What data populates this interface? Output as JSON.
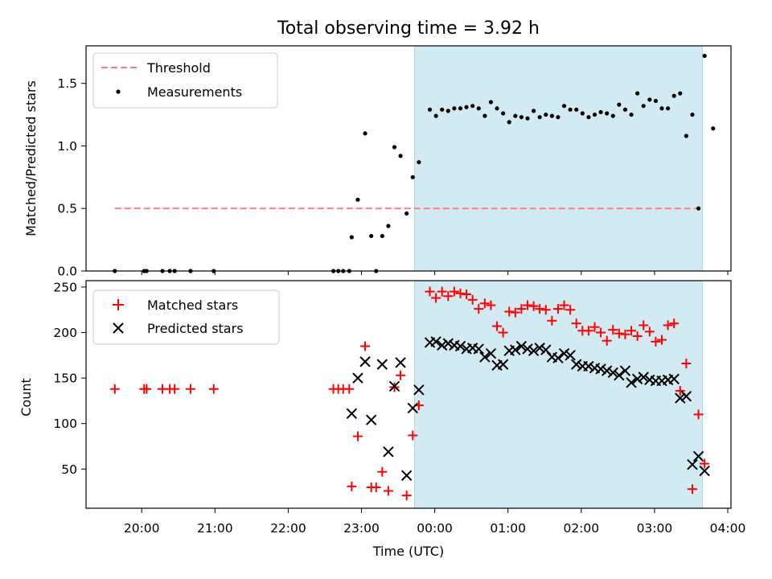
{
  "chart_data": {
    "type": "scatter",
    "title": "Total observing time = 3.92 h",
    "xlabel": "Time (UTC)",
    "x_ticks": [
      "20:00",
      "21:00",
      "22:00",
      "23:00",
      "00:00",
      "01:00",
      "02:00",
      "03:00",
      "04:00"
    ],
    "colors": {
      "threshold": "#ff7f7f",
      "measurements": "#000000",
      "matched": "#ff0000",
      "predicted": "#000000",
      "observing_window": "#add8e6"
    },
    "observing_window": {
      "start": "23:44",
      "end": "03:38"
    },
    "panels": [
      {
        "name": "ratio",
        "ylabel": "Matched/Predicted stars",
        "ylim": [
          0,
          1.8
        ],
        "y_ticks": [
          "0.0",
          "0.5",
          "1.0",
          "1.5"
        ],
        "legend": {
          "placement": "upper left",
          "threshold_label": "Threshold",
          "measurements_label": "Measurements"
        },
        "threshold": {
          "value": 0.5,
          "x_start": "19:38",
          "x_end": "03:38"
        },
        "points": [
          [
            "19:38",
            0.0
          ],
          [
            "20:02",
            0.0
          ],
          [
            "20:04",
            0.0
          ],
          [
            "20:17",
            0.0
          ],
          [
            "20:23",
            0.0
          ],
          [
            "20:27",
            0.0
          ],
          [
            "20:40",
            0.0
          ],
          [
            "20:59",
            0.0
          ],
          [
            "22:37",
            0.0
          ],
          [
            "22:41",
            0.0
          ],
          [
            "22:45",
            0.0
          ],
          [
            "22:50",
            0.0
          ],
          [
            "22:52",
            0.27
          ],
          [
            "22:57",
            0.57
          ],
          [
            "23:03",
            1.1
          ],
          [
            "23:08",
            0.28
          ],
          [
            "23:12",
            0.0
          ],
          [
            "23:17",
            0.28
          ],
          [
            "23:22",
            0.36
          ],
          [
            "23:27",
            0.99
          ],
          [
            "23:32",
            0.92
          ],
          [
            "23:37",
            0.46
          ],
          [
            "23:42",
            0.75
          ],
          [
            "23:47",
            0.87
          ],
          [
            "23:56",
            1.29
          ],
          [
            "00:01",
            1.24
          ],
          [
            "00:06",
            1.29
          ],
          [
            "00:11",
            1.28
          ],
          [
            "00:16",
            1.3
          ],
          [
            "00:21",
            1.3
          ],
          [
            "00:26",
            1.31
          ],
          [
            "00:31",
            1.32
          ],
          [
            "00:36",
            1.3
          ],
          [
            "00:41",
            1.24
          ],
          [
            "00:46",
            1.35
          ],
          [
            "00:51",
            1.3
          ],
          [
            "00:56",
            1.26
          ],
          [
            "01:01",
            1.19
          ],
          [
            "01:06",
            1.24
          ],
          [
            "01:11",
            1.23
          ],
          [
            "01:16",
            1.22
          ],
          [
            "01:21",
            1.28
          ],
          [
            "01:26",
            1.23
          ],
          [
            "01:31",
            1.25
          ],
          [
            "01:36",
            1.24
          ],
          [
            "01:41",
            1.23
          ],
          [
            "01:46",
            1.32
          ],
          [
            "01:51",
            1.29
          ],
          [
            "01:56",
            1.29
          ],
          [
            "02:01",
            1.26
          ],
          [
            "02:06",
            1.23
          ],
          [
            "02:11",
            1.25
          ],
          [
            "02:16",
            1.27
          ],
          [
            "02:21",
            1.26
          ],
          [
            "02:26",
            1.24
          ],
          [
            "02:31",
            1.33
          ],
          [
            "02:36",
            1.29
          ],
          [
            "02:41",
            1.25
          ],
          [
            "02:46",
            1.42
          ],
          [
            "02:51",
            1.32
          ],
          [
            "02:56",
            1.37
          ],
          [
            "03:01",
            1.36
          ],
          [
            "03:06",
            1.3
          ],
          [
            "03:11",
            1.3
          ],
          [
            "03:16",
            1.4
          ],
          [
            "03:21",
            1.42
          ],
          [
            "03:26",
            1.08
          ],
          [
            "03:31",
            1.25
          ],
          [
            "03:36",
            0.5
          ],
          [
            "03:41",
            1.72
          ],
          [
            "03:48",
            1.14
          ]
        ]
      },
      {
        "name": "counts",
        "ylabel": "Count",
        "ylim": [
          7,
          257
        ],
        "y_ticks": [
          "50",
          "100",
          "150",
          "200",
          "250"
        ],
        "legend": {
          "placement": "upper left",
          "matched_label": "Matched stars",
          "predicted_label": "Predicted stars"
        },
        "matched": [
          [
            "19:38",
            138
          ],
          [
            "20:02",
            138
          ],
          [
            "20:04",
            138
          ],
          [
            "20:17",
            138
          ],
          [
            "20:23",
            138
          ],
          [
            "20:27",
            138
          ],
          [
            "20:40",
            138
          ],
          [
            "20:59",
            138
          ],
          [
            "22:37",
            138
          ],
          [
            "22:41",
            138
          ],
          [
            "22:45",
            138
          ],
          [
            "22:50",
            138
          ],
          [
            "22:52",
            31
          ],
          [
            "22:57",
            86
          ],
          [
            "23:03",
            185
          ],
          [
            "23:08",
            30
          ],
          [
            "23:12",
            30
          ],
          [
            "23:17",
            47
          ],
          [
            "23:22",
            26
          ],
          [
            "23:27",
            140
          ],
          [
            "23:32",
            153
          ],
          [
            "23:37",
            21
          ],
          [
            "23:42",
            87
          ],
          [
            "23:47",
            120
          ],
          [
            "23:56",
            245
          ],
          [
            "00:01",
            238
          ],
          [
            "00:06",
            245
          ],
          [
            "00:11",
            240
          ],
          [
            "00:16",
            245
          ],
          [
            "00:21",
            243
          ],
          [
            "00:26",
            242
          ],
          [
            "00:31",
            236
          ],
          [
            "00:36",
            226
          ],
          [
            "00:41",
            232
          ],
          [
            "00:46",
            230
          ],
          [
            "00:51",
            207
          ],
          [
            "00:56",
            200
          ],
          [
            "01:01",
            223
          ],
          [
            "01:06",
            222
          ],
          [
            "01:11",
            226
          ],
          [
            "01:16",
            230
          ],
          [
            "01:21",
            229
          ],
          [
            "01:26",
            226
          ],
          [
            "01:31",
            225
          ],
          [
            "01:36",
            213
          ],
          [
            "01:41",
            226
          ],
          [
            "01:46",
            230
          ],
          [
            "01:51",
            225
          ],
          [
            "01:56",
            210
          ],
          [
            "02:01",
            202
          ],
          [
            "02:06",
            202
          ],
          [
            "02:11",
            206
          ],
          [
            "02:16",
            200
          ],
          [
            "02:21",
            191
          ],
          [
            "02:26",
            203
          ],
          [
            "02:31",
            199
          ],
          [
            "02:36",
            198
          ],
          [
            "02:41",
            202
          ],
          [
            "02:46",
            196
          ],
          [
            "02:51",
            208
          ],
          [
            "02:56",
            201
          ],
          [
            "03:01",
            190
          ],
          [
            "03:06",
            192
          ],
          [
            "03:11",
            208
          ],
          [
            "03:16",
            210
          ],
          [
            "03:21",
            136
          ],
          [
            "03:26",
            166
          ],
          [
            "03:31",
            28
          ],
          [
            "03:36",
            110
          ],
          [
            "03:41",
            56
          ]
        ],
        "predicted": [
          [
            "22:52",
            111
          ],
          [
            "22:57",
            150
          ],
          [
            "23:03",
            168
          ],
          [
            "23:08",
            104
          ],
          [
            "23:17",
            165
          ],
          [
            "23:22",
            69
          ],
          [
            "23:27",
            141
          ],
          [
            "23:32",
            167
          ],
          [
            "23:37",
            43
          ],
          [
            "23:42",
            117
          ],
          [
            "23:47",
            137
          ],
          [
            "23:56",
            189
          ],
          [
            "00:01",
            190
          ],
          [
            "00:06",
            186
          ],
          [
            "00:11",
            188
          ],
          [
            "00:16",
            186
          ],
          [
            "00:21",
            185
          ],
          [
            "00:26",
            182
          ],
          [
            "00:31",
            183
          ],
          [
            "00:36",
            182
          ],
          [
            "00:41",
            173
          ],
          [
            "00:46",
            177
          ],
          [
            "00:51",
            164
          ],
          [
            "00:56",
            165
          ],
          [
            "01:01",
            180
          ],
          [
            "01:06",
            181
          ],
          [
            "01:11",
            185
          ],
          [
            "01:16",
            182
          ],
          [
            "01:21",
            180
          ],
          [
            "01:26",
            183
          ],
          [
            "01:31",
            181
          ],
          [
            "01:36",
            173
          ],
          [
            "01:41",
            172
          ],
          [
            "01:46",
            177
          ],
          [
            "01:51",
            175
          ],
          [
            "01:56",
            165
          ],
          [
            "02:01",
            163
          ],
          [
            "02:06",
            163
          ],
          [
            "02:11",
            161
          ],
          [
            "02:16",
            160
          ],
          [
            "02:21",
            158
          ],
          [
            "02:26",
            156
          ],
          [
            "02:31",
            153
          ],
          [
            "02:36",
            158
          ],
          [
            "02:41",
            145
          ],
          [
            "02:46",
            149
          ],
          [
            "02:51",
            151
          ],
          [
            "02:56",
            148
          ],
          [
            "03:01",
            147
          ],
          [
            "03:06",
            147
          ],
          [
            "03:11",
            148
          ],
          [
            "03:16",
            149
          ],
          [
            "03:21",
            128
          ],
          [
            "03:26",
            130
          ],
          [
            "03:31",
            55
          ],
          [
            "03:36",
            64
          ],
          [
            "03:41",
            48
          ]
        ]
      }
    ]
  }
}
